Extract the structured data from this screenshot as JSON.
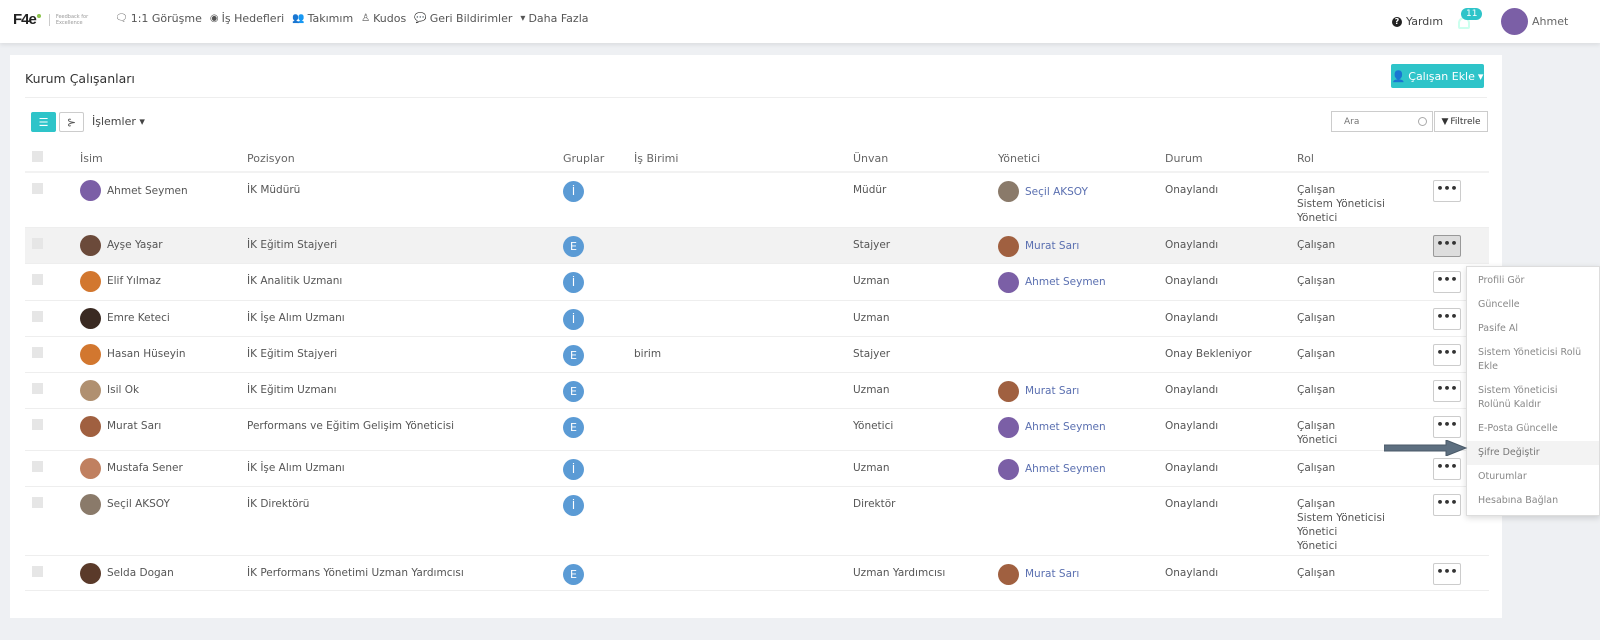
{
  "brand": {
    "logo": "F4e",
    "tagline": "Feedback for Excellence"
  },
  "nav": [
    {
      "icon": "chat-icon",
      "label": "1:1 Görüşme"
    },
    {
      "icon": "target-icon",
      "label": "İş Hedefleri"
    },
    {
      "icon": "users-icon",
      "label": "Takımım"
    },
    {
      "icon": "award-icon",
      "label": "Kudos"
    },
    {
      "icon": "comment-icon",
      "label": "Geri Bildirimler"
    },
    {
      "icon": "chevron-down-icon",
      "label": "Daha Fazla"
    }
  ],
  "header": {
    "help": "Yardım",
    "notifications": "11",
    "user": "Ahmet"
  },
  "page": {
    "title": "Kurum Çalışanları",
    "add_button": "Çalışan Ekle",
    "operations": "İşlemler",
    "search_placeholder": "Ara",
    "filter": "Filtrele"
  },
  "columns": [
    "İsim",
    "Pozisyon",
    "Gruplar",
    "İş Birimi",
    "Ünvan",
    "Yönetici",
    "Durum",
    "Rol"
  ],
  "rows": [
    {
      "name": "Ahmet Seymen",
      "avatar": "#7b5fa6",
      "position": "İK Müdürü",
      "group": "İ",
      "unit": "",
      "title": "Müdür",
      "manager": "Seçil AKSOY",
      "manager_avatar": "#8a7a6a",
      "status": "Onaylandı",
      "roles": [
        "Çalışan",
        "Sistem Yöneticisi",
        "Yönetici"
      ]
    },
    {
      "name": "Ayşe Yaşar",
      "avatar": "#6b4a3a",
      "position": "İK Eğitim Stajyeri",
      "group": "E",
      "unit": "",
      "title": "Stajyer",
      "manager": "Murat Sarı",
      "manager_avatar": "#a06040",
      "status": "Onaylandı",
      "roles": [
        "Çalışan"
      ]
    },
    {
      "name": "Elif Yılmaz",
      "avatar": "#d2772f",
      "position": "İK Analitik Uzmanı",
      "group": "İ",
      "unit": "",
      "title": "Uzman",
      "manager": "Ahmet Seymen",
      "manager_avatar": "#7b5fa6",
      "status": "Onaylandı",
      "roles": [
        "Çalışan"
      ]
    },
    {
      "name": "Emre Keteci",
      "avatar": "#3a2a22",
      "position": "İK İşe Alım Uzmanı",
      "group": "İ",
      "unit": "",
      "title": "Uzman",
      "manager": "",
      "manager_avatar": "",
      "status": "Onaylandı",
      "roles": [
        "Çalışan"
      ]
    },
    {
      "name": "Hasan Hüseyin",
      "avatar": "#d2772f",
      "position": "İK Eğitim Stajyeri",
      "group": "E",
      "unit": "birim",
      "title": "Stajyer",
      "manager": "",
      "manager_avatar": "",
      "status": "Onay Bekleniyor",
      "roles": [
        "Çalışan"
      ]
    },
    {
      "name": "Isil Ok",
      "avatar": "#b09070",
      "position": "İK Eğitim Uzmanı",
      "group": "E",
      "unit": "",
      "title": "Uzman",
      "manager": "Murat Sarı",
      "manager_avatar": "#a06040",
      "status": "Onaylandı",
      "roles": [
        "Çalışan"
      ]
    },
    {
      "name": "Murat Sarı",
      "avatar": "#a06040",
      "position": "Performans ve Eğitim Gelişim Yöneticisi",
      "group": "E",
      "unit": "",
      "title": "Yönetici",
      "manager": "Ahmet Seymen",
      "manager_avatar": "#7b5fa6",
      "status": "Onaylandı",
      "roles": [
        "Çalışan",
        "Yönetici"
      ]
    },
    {
      "name": "Mustafa Sener",
      "avatar": "#c08060",
      "position": "İK İşe Alım Uzmanı",
      "group": "İ",
      "unit": "",
      "title": "Uzman",
      "manager": "Ahmet Seymen",
      "manager_avatar": "#7b5fa6",
      "status": "Onaylandı",
      "roles": [
        "Çalışan"
      ]
    },
    {
      "name": "Seçil AKSOY",
      "avatar": "#8a7a6a",
      "position": "İK Direktörü",
      "group": "İ",
      "unit": "",
      "title": "Direktör",
      "manager": "",
      "manager_avatar": "",
      "status": "Onaylandı",
      "roles": [
        "Çalışan",
        "Sistem Yöneticisi",
        "Yönetici",
        "Yönetici"
      ]
    },
    {
      "name": "Selda Dogan",
      "avatar": "#5a3a2a",
      "position": "İK Performans Yönetimi Uzman Yardımcısı",
      "group": "E",
      "unit": "",
      "title": "Uzman Yardımcısı",
      "manager": "Murat Sarı",
      "manager_avatar": "#a06040",
      "status": "Onaylandı",
      "roles": [
        "Çalışan"
      ]
    }
  ],
  "active_row": 1,
  "menu": {
    "items": [
      "Profili Gör",
      "Güncelle",
      "Pasife Al",
      "Sistem Yöneticisi Rolü Ekle",
      "Sistem Yöneticisi Rolünü Kaldır",
      "E-Posta Güncelle",
      "Şifre Değiştir",
      "Oturumlar",
      "Hesabına Bağlan"
    ],
    "highlighted": "Şifre Değiştir"
  },
  "colors": {
    "accent": "#2ec4c9",
    "group_badge": "#5b9bd5",
    "link": "#5a6fb0",
    "arrow": "#5d6f80"
  },
  "more_label": "•••"
}
